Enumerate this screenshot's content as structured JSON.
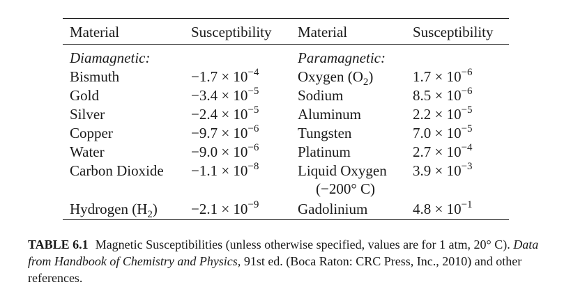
{
  "table": {
    "headers": [
      "Material",
      "Susceptibility",
      "Material",
      "Susceptibility"
    ],
    "left_group": "Diamagnetic:",
    "right_group": "Paramagnetic:",
    "rows": [
      {
        "m1": "Bismuth",
        "s1_mant": "−1.7 × 10",
        "s1_exp": "−4",
        "m2": "Oxygen (O",
        "m2_sub": "2",
        "m2_tail": ")",
        "s2_mant": "1.7 × 10",
        "s2_exp": "−6"
      },
      {
        "m1": "Gold",
        "s1_mant": "−3.4 × 10",
        "s1_exp": "−5",
        "m2": "Sodium",
        "s2_mant": "8.5 × 10",
        "s2_exp": "−6"
      },
      {
        "m1": "Silver",
        "s1_mant": "−2.4 × 10",
        "s1_exp": "−5",
        "m2": "Aluminum",
        "s2_mant": "2.2 × 10",
        "s2_exp": "−5"
      },
      {
        "m1": "Copper",
        "s1_mant": "−9.7 × 10",
        "s1_exp": "−6",
        "m2": "Tungsten",
        "s2_mant": "7.0 × 10",
        "s2_exp": "−5"
      },
      {
        "m1": "Water",
        "s1_mant": "−9.0 × 10",
        "s1_exp": "−6",
        "m2": "Platinum",
        "s2_mant": "2.7 × 10",
        "s2_exp": "−4"
      },
      {
        "m1": "Carbon Dioxide",
        "s1_mant": "−1.1 × 10",
        "s1_exp": "−8",
        "m2": "Liquid Oxygen",
        "m2_line2": "(−200° C)",
        "s2_mant": "3.9 × 10",
        "s2_exp": "−3"
      },
      {
        "m1": "Hydrogen (H",
        "m1_sub": "2",
        "m1_tail": ")",
        "s1_mant": "−2.1 × 10",
        "s1_exp": "−9",
        "m2": "Gadolinium",
        "s2_mant": "4.8 × 10",
        "s2_exp": "−1"
      }
    ]
  },
  "caption": {
    "label": "TABLE 6.1",
    "text1": "Magnetic Susceptibilities (unless otherwise specified, values are for 1 atm, 20° C). ",
    "source_italic": "Data from Handbook of Chemistry and Physics,",
    "text2": " 91st ed. (Boca Raton: CRC Press, Inc., 2010) and other references."
  }
}
